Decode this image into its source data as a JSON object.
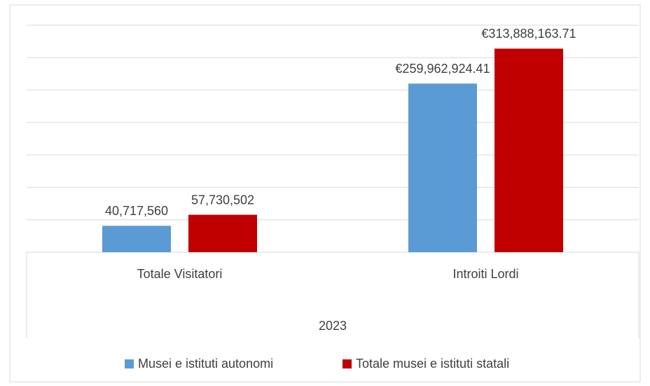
{
  "chart_data": {
    "type": "bar",
    "categories": [
      "Totale Visitatori",
      "Introiti Lordi"
    ],
    "category_group": "2023",
    "series": [
      {
        "name": "Musei e istituti autonomi",
        "color": "#5b9bd5",
        "values": [
          40717560,
          259962924.41
        ],
        "value_labels": [
          "40,717,560",
          "€259,962,924.41"
        ]
      },
      {
        "name": "Totale musei e istituti statali",
        "color": "#c00000",
        "values": [
          57730502,
          313888163.71
        ],
        "value_labels": [
          "57,730,502",
          "€313,888,163.71"
        ]
      }
    ],
    "ylim": [
      0,
      350000000
    ],
    "yticks": [
      0,
      50000000,
      100000000,
      150000000,
      200000000,
      250000000,
      300000000,
      350000000
    ],
    "grid": true,
    "legend": "bottom"
  }
}
